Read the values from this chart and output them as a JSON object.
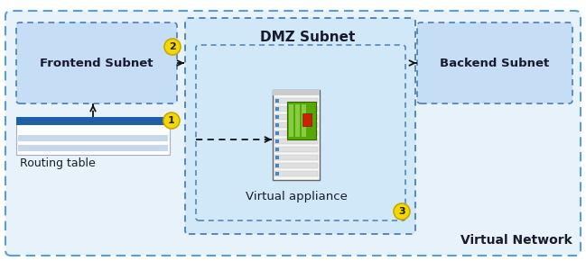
{
  "outer_fill": "#e8f2fb",
  "outer_border": "#5a9fd4",
  "subnet_fill": "#c5ddf5",
  "subnet_border": "#4a7fb5",
  "dmz_fill": "#d0e8f8",
  "dmz_border": "#4a7fb5",
  "white_fill": "#ffffff",
  "arrow_color": "#111111",
  "badge_color": "#f5d800",
  "badge_border": "#c8a800",
  "badge_text": "#222200",
  "label_dark": "#1a1a2e",
  "routing_blue_dark": "#1f5fa6",
  "routing_blue_light": "#c8d8ec",
  "frontend_label": "Frontend Subnet",
  "dmz_label": "DMZ Subnet",
  "backend_label": "Backend Subnet",
  "appliance_label": "Virtual appliance",
  "routing_label": "Routing table",
  "network_label": "Virtual Network",
  "b1": "1",
  "b2": "2",
  "b3": "3",
  "fig_w": 6.49,
  "fig_h": 2.9,
  "dpi": 100
}
